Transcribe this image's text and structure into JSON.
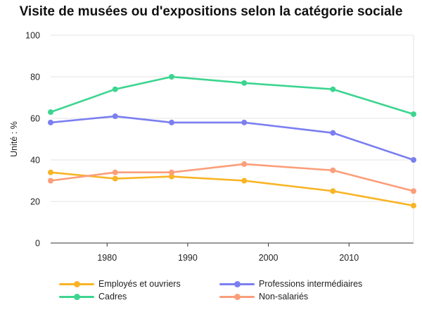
{
  "chart_data": {
    "type": "line",
    "title": "Visite de musées ou d'expositions selon la catégorie sociale",
    "ylabel": "Unité : %",
    "xlabel": "",
    "x": [
      1973,
      1981,
      1988,
      1997,
      2008,
      2018
    ],
    "xlim": [
      1973,
      2018
    ],
    "ylim": [
      0,
      100
    ],
    "x_ticks": [
      1980,
      1990,
      2000,
      2010
    ],
    "y_ticks": [
      0,
      20,
      40,
      60,
      80,
      100
    ],
    "grid": "horizontal",
    "legend_position": "bottom",
    "series": [
      {
        "name": "Employés et ouvriers",
        "color": "#F9B425",
        "values": [
          34,
          31,
          32,
          30,
          25,
          18
        ]
      },
      {
        "name": "Professions intermédiaires",
        "color": "#7B7FF0",
        "values": [
          58,
          61,
          58,
          58,
          53,
          40
        ]
      },
      {
        "name": "Cadres",
        "color": "#3CD590",
        "values": [
          63,
          74,
          80,
          77,
          74,
          62
        ]
      },
      {
        "name": "Non-salariés",
        "color": "#FB9E7A",
        "values": [
          30,
          34,
          34,
          38,
          35,
          25
        ]
      }
    ]
  }
}
